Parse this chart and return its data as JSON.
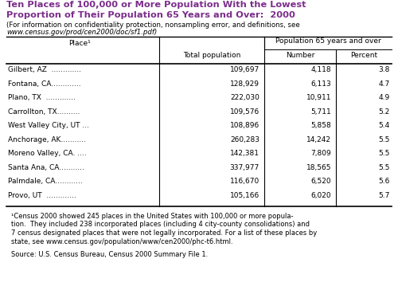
{
  "title_line1": "Ten Places of 100,000 or More Population With the Lowest",
  "title_line2": "Proportion of Their Population 65 Years and Over:  2000",
  "title_color": "#7B2D8B",
  "subtitle_line1": "(For information on confidentiality protection, nonsampling error, and definitions, see",
  "subtitle_line2": "www.census.gov/prod/cen2000/doc/sf1.pdf)",
  "col_header_place": "Place¹",
  "col_header_total": "Total population",
  "col_header_pop65": "Population 65 years and over",
  "col_header_number": "Number",
  "col_header_percent": "Percent",
  "place_names": [
    "Gilbert, AZ  .............",
    "Fontana, CA.............",
    "Plano, TX  .............",
    "Carrollton, TX..........",
    "West Valley City, UT ...",
    "Anchorage, AK...........",
    "Moreno Valley, CA. ....",
    "Santa Ana, CA...........",
    "Palmdale, CA............",
    "Provo, UT  ............."
  ],
  "total_pop": [
    "109,697",
    "128,929",
    "222,030",
    "109,576",
    "108,896",
    "260,283",
    "142,381",
    "337,977",
    "116,670",
    "105,166"
  ],
  "number": [
    "4,118",
    "6,113",
    "10,911",
    "5,711",
    "5,858",
    "14,242",
    "7,809",
    "18,565",
    "6,520",
    "6,020"
  ],
  "percent": [
    "3.8",
    "4.7",
    "4.9",
    "5.2",
    "5.4",
    "5.5",
    "5.5",
    "5.5",
    "5.6",
    "5.7"
  ],
  "footnote_lines": [
    "¹Census 2000 showed 245 places in the United States with 100,000 or more popula-",
    "tion.  They included 238 incorporated places (including 4 city-county consolidations) and",
    "7 census designated places that were not legally incorporated. For a list of these places by",
    "state, see www.census.gov/population/www/cen2000/phc-t6.html."
  ],
  "source": "Source: U.S. Census Bureau, Census 2000 Summary File 1.",
  "bg_color": "#FFFFFF"
}
